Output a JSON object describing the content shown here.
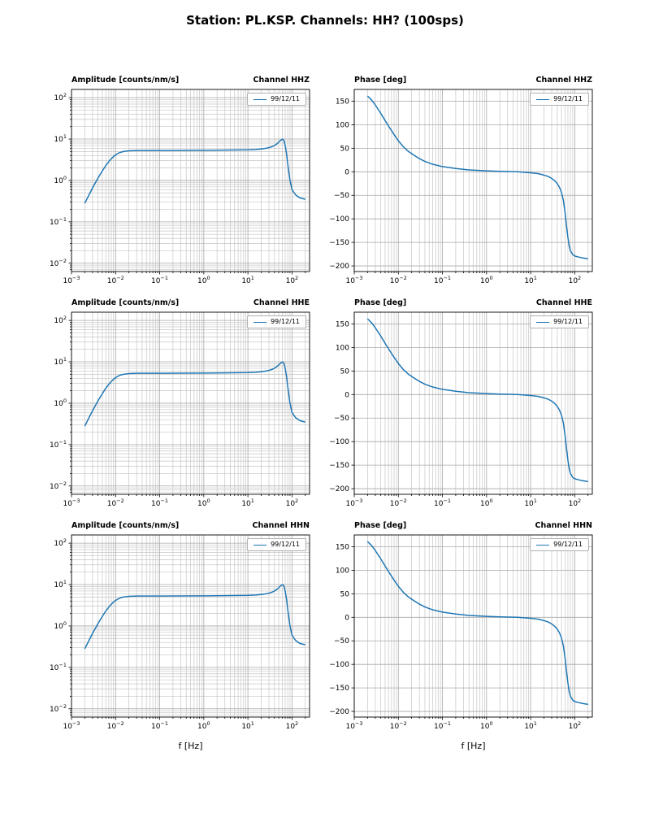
{
  "figure_title": "Station: PL.KSP. Channels: HH? (100sps)",
  "xlabel": "f [Hz]",
  "style": {
    "line_color": "#1f77b4",
    "grid_major": "#a8a8a8",
    "grid_minor": "#c6c6c6",
    "frame_color": "#000000"
  },
  "responses": {
    "amplitude": {
      "f": [
        0.002,
        0.0025,
        0.003,
        0.004,
        0.005,
        0.006,
        0.007,
        0.008,
        0.009,
        0.01,
        0.012,
        0.015,
        0.02,
        0.03,
        0.05,
        0.1,
        0.3,
        1,
        3,
        10,
        15,
        20,
        25,
        30,
        35,
        40,
        45,
        50,
        55,
        60,
        63,
        66,
        70,
        75,
        80,
        90,
        100,
        120,
        150,
        200
      ],
      "v": [
        0.28,
        0.45,
        0.66,
        1.15,
        1.7,
        2.3,
        2.85,
        3.35,
        3.8,
        4.15,
        4.65,
        5.0,
        5.2,
        5.3,
        5.3,
        5.3,
        5.32,
        5.35,
        5.4,
        5.5,
        5.6,
        5.75,
        5.95,
        6.2,
        6.55,
        7.0,
        7.6,
        8.4,
        9.3,
        9.9,
        9.8,
        9.0,
        7.0,
        4.5,
        2.5,
        1.0,
        0.6,
        0.45,
        0.38,
        0.35
      ]
    },
    "phase": {
      "f": [
        0.002,
        0.0025,
        0.003,
        0.004,
        0.005,
        0.006,
        0.008,
        0.01,
        0.013,
        0.017,
        0.022,
        0.03,
        0.04,
        0.06,
        0.1,
        0.2,
        0.4,
        1,
        2,
        5,
        10,
        15,
        20,
        25,
        30,
        35,
        40,
        45,
        50,
        55,
        60,
        65,
        70,
        75,
        80,
        90,
        100,
        120,
        150,
        200
      ],
      "v": [
        161,
        152,
        142,
        124,
        109,
        97,
        79,
        66,
        53,
        43,
        36,
        28,
        22,
        16,
        11,
        7,
        4,
        2,
        1,
        0,
        -2,
        -4,
        -7,
        -10,
        -14,
        -19,
        -25,
        -33,
        -44,
        -60,
        -85,
        -115,
        -140,
        -158,
        -168,
        -176,
        -179,
        -181,
        -183,
        -185
      ]
    }
  },
  "chart_data": [
    {
      "id": "amplitude-hhz",
      "type": "line",
      "title_left": "Amplitude [counts/nm/s]",
      "title_right": "Channel HHZ",
      "xscale": "log",
      "yscale": "log",
      "xlim": [
        0.001,
        250
      ],
      "ylim": [
        0.0063,
        158
      ],
      "xtick_exponents": [
        -3,
        -2,
        -1,
        0,
        1,
        2
      ],
      "ytick_exponents": [
        -2,
        -1,
        0,
        1,
        2
      ],
      "legend": "99/12/11",
      "series_key": "amplitude",
      "xlabel": "f [Hz]",
      "ylabel": "Amplitude [counts/nm/s]"
    },
    {
      "id": "phase-hhz",
      "type": "line",
      "title_left": "Phase [deg]",
      "title_right": "Channel HHZ",
      "xscale": "log",
      "yscale": "linear",
      "xlim": [
        0.001,
        250
      ],
      "ylim": [
        -212,
        175
      ],
      "xtick_exponents": [
        -3,
        -2,
        -1,
        0,
        1,
        2
      ],
      "yticks": [
        -200,
        -150,
        -100,
        -50,
        0,
        50,
        100,
        150
      ],
      "legend": "99/12/11",
      "series_key": "phase",
      "xlabel": "f [Hz]",
      "ylabel": "Phase [deg]"
    },
    {
      "id": "amplitude-hhe",
      "type": "line",
      "title_left": "Amplitude [counts/nm/s]",
      "title_right": "Channel HHE",
      "xscale": "log",
      "yscale": "log",
      "xlim": [
        0.001,
        250
      ],
      "ylim": [
        0.0063,
        158
      ],
      "xtick_exponents": [
        -3,
        -2,
        -1,
        0,
        1,
        2
      ],
      "ytick_exponents": [
        -2,
        -1,
        0,
        1,
        2
      ],
      "legend": "99/12/11",
      "series_key": "amplitude",
      "xlabel": "f [Hz]",
      "ylabel": "Amplitude [counts/nm/s]"
    },
    {
      "id": "phase-hhe",
      "type": "line",
      "title_left": "Phase [deg]",
      "title_right": "Channel HHE",
      "xscale": "log",
      "yscale": "linear",
      "xlim": [
        0.001,
        250
      ],
      "ylim": [
        -212,
        175
      ],
      "xtick_exponents": [
        -3,
        -2,
        -1,
        0,
        1,
        2
      ],
      "yticks": [
        -200,
        -150,
        -100,
        -50,
        0,
        50,
        100,
        150
      ],
      "legend": "99/12/11",
      "series_key": "phase",
      "xlabel": "f [Hz]",
      "ylabel": "Phase [deg]"
    },
    {
      "id": "amplitude-hhn",
      "type": "line",
      "title_left": "Amplitude [counts/nm/s]",
      "title_right": "Channel HHN",
      "xscale": "log",
      "yscale": "log",
      "xlim": [
        0.001,
        250
      ],
      "ylim": [
        0.0063,
        158
      ],
      "xtick_exponents": [
        -3,
        -2,
        -1,
        0,
        1,
        2
      ],
      "ytick_exponents": [
        -2,
        -1,
        0,
        1,
        2
      ],
      "legend": "99/12/11",
      "series_key": "amplitude",
      "xlabel": "f [Hz]",
      "ylabel": "Amplitude [counts/nm/s]"
    },
    {
      "id": "phase-hhn",
      "type": "line",
      "title_left": "Phase [deg]",
      "title_right": "Channel HHN",
      "xscale": "log",
      "yscale": "linear",
      "xlim": [
        0.001,
        250
      ],
      "ylim": [
        -212,
        175
      ],
      "xtick_exponents": [
        -3,
        -2,
        -1,
        0,
        1,
        2
      ],
      "yticks": [
        -200,
        -150,
        -100,
        -50,
        0,
        50,
        100,
        150
      ],
      "legend": "99/12/11",
      "series_key": "phase",
      "xlabel": "f [Hz]",
      "ylabel": "Phase [deg]"
    }
  ]
}
